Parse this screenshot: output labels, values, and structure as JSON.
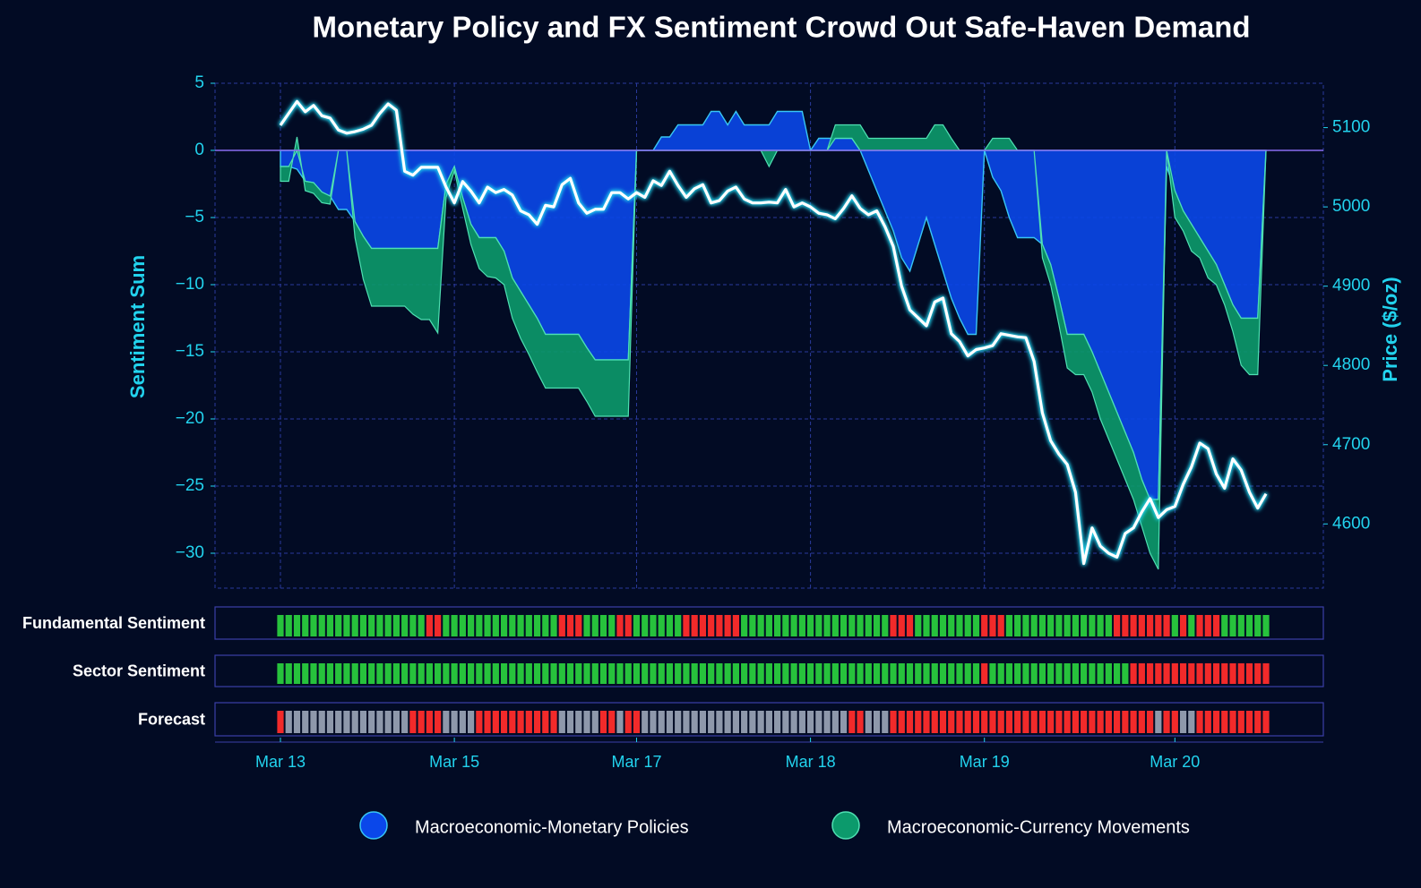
{
  "chart_data": [
    {
      "type": "area",
      "title": "Monetary Policy and FX Sentiment Crowd Out Safe-Haven Demand",
      "y_label": "Sentiment Sum",
      "y2_label": "Price ($/oz)",
      "categories": [
        "Mar 13",
        null,
        null,
        null,
        null,
        null,
        null,
        null,
        null,
        null,
        null,
        null,
        null,
        null,
        null,
        null,
        null,
        null,
        null,
        null,
        null,
        "Mar 15",
        null,
        null,
        null,
        null,
        null,
        null,
        null,
        null,
        null,
        null,
        null,
        null,
        null,
        null,
        null,
        null,
        null,
        null,
        null,
        null,
        null,
        "Mar 17",
        null,
        null,
        null,
        null,
        null,
        null,
        null,
        null,
        null,
        null,
        null,
        null,
        null,
        null,
        null,
        null,
        null,
        null,
        null,
        null,
        "Mar 18",
        null,
        null,
        null,
        null,
        null,
        null,
        null,
        null,
        null,
        null,
        null,
        null,
        null,
        null,
        null,
        null,
        null,
        null,
        null,
        null,
        "Mar 19",
        null,
        null,
        null,
        null,
        null,
        null,
        null,
        null,
        null,
        null,
        null,
        null,
        null,
        null,
        null,
        null,
        null,
        null,
        null,
        null,
        null,
        null,
        "Mar 20",
        null,
        null,
        null,
        null,
        null,
        null,
        null,
        null,
        null,
        null,
        null
      ],
      "series": [
        {
          "name": "Macroeconomic-Monetary Policies",
          "color": "#0a47ea",
          "edgecolor": "#38c6f4",
          "values": [
            -1.2,
            -1.2,
            -1.4,
            -2.3,
            -2.4,
            -3.1,
            -3.4,
            -4.4,
            -4.4,
            -5.3,
            -6.4,
            -7.3,
            -7.3,
            -7.3,
            -7.3,
            -7.3,
            -7.3,
            -7.3,
            -7.3,
            -7.3,
            -2.5,
            -1.2,
            -3.5,
            -5.5,
            -6.5,
            -6.5,
            -6.5,
            -7.5,
            -9.5,
            -10.5,
            -11.5,
            -12.5,
            -13.7,
            -13.7,
            -13.7,
            -13.7,
            -13.7,
            -14.7,
            -15.6,
            -15.6,
            -15.6,
            -15.6,
            -15.6,
            0,
            0,
            0,
            1,
            1,
            1.9,
            1.9,
            1.9,
            1.9,
            2.9,
            2.9,
            1.9,
            2.9,
            1.9,
            1.9,
            1.9,
            1.9,
            2.9,
            2.9,
            2.9,
            2.9,
            0,
            0.9,
            0.9,
            0.9,
            0.9,
            0.9,
            0,
            -1.5,
            -3,
            -4.5,
            -6,
            -8,
            -9,
            -7,
            -5,
            -7,
            -9,
            -11,
            -12.5,
            -13.7,
            -13.7,
            0,
            -2,
            -3,
            -5,
            -6.5,
            -6.5,
            -6.5,
            -7,
            -8.5,
            -11,
            -13.7,
            -13.7,
            -13.7,
            -15,
            -16.5,
            -18,
            -19.5,
            -21,
            -22.5,
            -24.5,
            -26,
            -26,
            -1.2,
            -3,
            -4.5,
            -5.5,
            -6.5,
            -7.5,
            -8.5,
            -10,
            -11.5,
            -12.5,
            -12.5,
            -12.5,
            0
          ]
        },
        {
          "name": "Macroeconomic-Currency Movements",
          "color": "#0c9a6c",
          "edgecolor": "#4fe0b2",
          "values": [
            -1.1,
            -1.1,
            1,
            -0.7,
            -0.8,
            -0.8,
            -0.6,
            0,
            0,
            -1.2,
            -3.2,
            -4.3,
            -4.3,
            -4.3,
            -4.3,
            -4.3,
            -4.9,
            -5.3,
            -5.3,
            -6.3,
            -1,
            -0.3,
            -0.8,
            -1.5,
            -2.3,
            -2.9,
            -3,
            -2.5,
            -3,
            -3.5,
            -3.7,
            -4,
            -4,
            -4,
            -4,
            -4,
            -4,
            -4,
            -4.2,
            -4.2,
            -4.2,
            -4.2,
            -4.2,
            0,
            0,
            0,
            0,
            0,
            0,
            0,
            0,
            0,
            0,
            0,
            0,
            0,
            0,
            0,
            0,
            -1.2,
            0,
            0,
            0,
            0,
            0,
            0,
            0,
            1,
            1,
            1,
            1.9,
            0.9,
            0.9,
            0.9,
            0.9,
            0.9,
            0.9,
            0.9,
            0.9,
            1.9,
            1.9,
            0.9,
            0,
            0,
            0,
            0,
            0.9,
            0.9,
            0.9,
            0,
            0,
            0,
            -1,
            -1.5,
            -2,
            -2.5,
            -3,
            -3,
            -3,
            -3.5,
            -3.5,
            -3.5,
            -3.5,
            -3.5,
            -3.5,
            -4,
            -5.2,
            0,
            -2,
            -1.5,
            -2,
            -1.5,
            -2,
            -1.5,
            -1.5,
            -2,
            -3.5,
            -4.2,
            -4.2,
            0
          ]
        },
        {
          "type": "line",
          "axis": "y2",
          "color": "#ffffff",
          "edgecolor": "#22d3ee",
          "values": [
            5103,
            5118,
            5133,
            5120,
            5128,
            5115,
            5112,
            5097,
            5093,
            5095,
            5098,
            5103,
            5118,
            5130,
            5122,
            5045,
            5040,
            5050,
            5050,
            5050,
            5025,
            5005,
            5032,
            5020,
            5005,
            5025,
            5018,
            5022,
            5015,
            4995,
            4990,
            4978,
            5002,
            5000,
            5028,
            5036,
            5005,
            4992,
            4997,
            4997,
            5018,
            5018,
            5010,
            5018,
            5012,
            5033,
            5027,
            5045,
            5027,
            5012,
            5023,
            5028,
            5005,
            5008,
            5020,
            5025,
            5010,
            5005,
            5005,
            5006,
            5005,
            5022,
            5000,
            5005,
            5000,
            4992,
            4990,
            4985,
            4998,
            5014,
            4998,
            4990,
            4995,
            4975,
            4950,
            4900,
            4870,
            4860,
            4850,
            4880,
            4885,
            4840,
            4830,
            4812,
            4820,
            4822,
            4825,
            4840,
            4838,
            4836,
            4835,
            4805,
            4740,
            4705,
            4688,
            4675,
            4640,
            4550,
            4595,
            4572,
            4563,
            4558,
            4588,
            4595,
            4615,
            4632,
            4608,
            4618,
            4622,
            4650,
            4672,
            4702,
            4695,
            4663,
            4645,
            4682,
            4668,
            4640,
            4620,
            4638
          ]
        }
      ],
      "ylim": [
        -32.6,
        5
      ],
      "yticks": [
        {
          "value": -30,
          "label": "−30"
        },
        {
          "value": -25,
          "label": "−25"
        },
        {
          "value": -20,
          "label": "−20"
        },
        {
          "value": -15,
          "label": "−15"
        },
        {
          "value": -10,
          "label": "−10"
        },
        {
          "value": -5,
          "label": "−5"
        },
        0,
        5
      ],
      "y2lim": [
        4519,
        5156
      ],
      "y2ticks": [
        4600,
        4700,
        4800,
        4900,
        5000,
        5100
      ],
      "grid": true,
      "legend": "bottom"
    },
    {
      "type": "strip",
      "title": "Fundamental Sentiment",
      "colors": {
        "-1": "#f22a2a",
        "0": "#8e98ab",
        "1": "#27c23c"
      },
      "values": [
        1,
        1,
        1,
        1,
        1,
        1,
        1,
        1,
        1,
        1,
        1,
        1,
        1,
        1,
        1,
        1,
        1,
        1,
        -1,
        -1,
        1,
        1,
        1,
        1,
        1,
        1,
        1,
        1,
        1,
        1,
        1,
        1,
        1,
        1,
        -1,
        -1,
        -1,
        1,
        1,
        1,
        1,
        -1,
        -1,
        1,
        1,
        1,
        1,
        1,
        1,
        -1,
        -1,
        -1,
        -1,
        -1,
        -1,
        -1,
        1,
        1,
        1,
        1,
        1,
        1,
        1,
        1,
        1,
        1,
        1,
        1,
        1,
        1,
        1,
        1,
        1,
        1,
        -1,
        -1,
        -1,
        1,
        1,
        1,
        1,
        1,
        1,
        1,
        1,
        -1,
        -1,
        -1,
        1,
        1,
        1,
        1,
        1,
        1,
        1,
        1,
        1,
        1,
        1,
        1,
        1,
        -1,
        -1,
        -1,
        -1,
        -1,
        -1,
        -1,
        1,
        -1,
        1,
        -1,
        -1,
        -1,
        1,
        1,
        1,
        1,
        1,
        1
      ]
    },
    {
      "type": "strip",
      "title": "Sector Sentiment",
      "colors": {
        "-1": "#f22a2a",
        "0": "#8e98ab",
        "1": "#27c23c"
      },
      "values": [
        1,
        1,
        1,
        1,
        1,
        1,
        1,
        1,
        1,
        1,
        1,
        1,
        1,
        1,
        1,
        1,
        1,
        1,
        1,
        1,
        1,
        1,
        1,
        1,
        1,
        1,
        1,
        1,
        1,
        1,
        1,
        1,
        1,
        1,
        1,
        1,
        1,
        1,
        1,
        1,
        1,
        1,
        1,
        1,
        1,
        1,
        1,
        1,
        1,
        1,
        1,
        1,
        1,
        1,
        1,
        1,
        1,
        1,
        1,
        1,
        1,
        1,
        1,
        1,
        1,
        1,
        1,
        1,
        1,
        1,
        1,
        1,
        1,
        1,
        1,
        1,
        1,
        1,
        1,
        1,
        1,
        1,
        1,
        1,
        1,
        -1,
        1,
        1,
        1,
        1,
        1,
        1,
        1,
        1,
        1,
        1,
        1,
        1,
        1,
        1,
        1,
        1,
        1,
        -1,
        -1,
        -1,
        -1,
        -1,
        -1,
        -1,
        -1,
        -1,
        -1,
        -1,
        -1,
        -1,
        -1,
        -1,
        -1,
        -1
      ]
    },
    {
      "type": "strip",
      "title": "Forecast",
      "colors": {
        "-1": "#f22a2a",
        "0": "#8e98ab",
        "1": "#27c23c"
      },
      "values": [
        -1,
        0,
        0,
        0,
        0,
        0,
        0,
        0,
        0,
        0,
        0,
        0,
        0,
        0,
        0,
        0,
        -1,
        -1,
        -1,
        -1,
        0,
        0,
        0,
        0,
        -1,
        -1,
        -1,
        -1,
        -1,
        -1,
        -1,
        -1,
        -1,
        -1,
        0,
        0,
        0,
        0,
        0,
        -1,
        -1,
        0,
        -1,
        -1,
        0,
        0,
        0,
        0,
        0,
        0,
        0,
        0,
        0,
        0,
        0,
        0,
        0,
        0,
        0,
        0,
        0,
        0,
        0,
        0,
        0,
        0,
        0,
        0,
        0,
        -1,
        -1,
        0,
        0,
        0,
        -1,
        -1,
        -1,
        -1,
        -1,
        -1,
        -1,
        -1,
        -1,
        -1,
        -1,
        -1,
        -1,
        -1,
        -1,
        -1,
        -1,
        -1,
        -1,
        -1,
        -1,
        -1,
        -1,
        -1,
        -1,
        -1,
        -1,
        -1,
        -1,
        -1,
        -1,
        -1,
        0,
        -1,
        -1,
        0,
        0,
        -1,
        -1,
        -1,
        -1,
        -1,
        -1,
        -1,
        -1,
        -1
      ]
    }
  ]
}
